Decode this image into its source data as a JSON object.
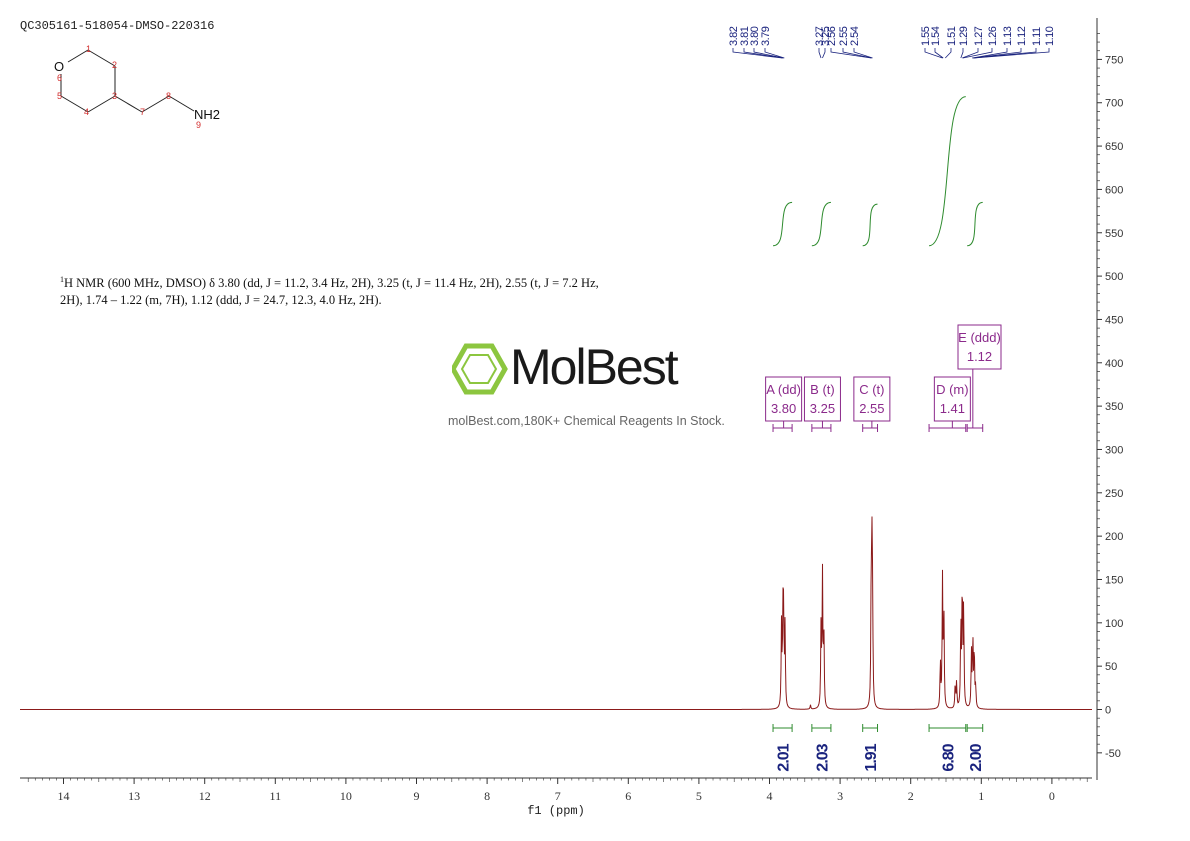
{
  "sample_id": "QC305161-518054-DMSO-220316",
  "nmr_description": {
    "nucleus_sup": "1",
    "text": "H NMR (600 MHz, DMSO) δ 3.80 (dd, J = 11.2, 3.4 Hz, 2H), 3.25 (t, J = 11.4 Hz, 2H), 2.55 (t, J = 7.2 Hz, 2H), 1.74 – 1.22 (m, 7H), 1.12 (ddd, J = 24.7, 12.3, 4.0 Hz, 2H)."
  },
  "logo": {
    "text": "MolBest",
    "tagline": "molBest.com,180K+ Chemical Reagents In Stock."
  },
  "molecule": {
    "atoms": [
      "O",
      "NH2"
    ],
    "numbers": [
      "1",
      "2",
      "3",
      "4",
      "5",
      "6",
      "7",
      "8",
      "9"
    ]
  },
  "colors": {
    "spectrum": "#8b1a1a",
    "integral": "#2e8b2e",
    "peak_label": "#1a237e",
    "multiplet": "#8b2a8b",
    "axis": "#333333",
    "atom_number": "#d32f2f"
  },
  "chart_data": {
    "type": "line",
    "xlabel": "f1 (ppm)",
    "xlim": [
      14.6,
      -0.5
    ],
    "x_ticks": [
      "14",
      "13",
      "12",
      "11",
      "10",
      "9",
      "8",
      "7",
      "6",
      "5",
      "4",
      "3",
      "2",
      "1",
      "0"
    ],
    "ylim": [
      -80,
      780
    ],
    "y_ticks": [
      "-50",
      "0",
      "50",
      "100",
      "150",
      "200",
      "250",
      "300",
      "350",
      "400",
      "450",
      "500",
      "550",
      "600",
      "650",
      "700",
      "750"
    ],
    "peaks": [
      {
        "x": 3.83,
        "y": 95
      },
      {
        "x": 3.81,
        "y": 102
      },
      {
        "x": 3.8,
        "y": 100
      },
      {
        "x": 3.78,
        "y": 93
      },
      {
        "x": 3.42,
        "y": 5
      },
      {
        "x": 3.27,
        "y": 93
      },
      {
        "x": 3.25,
        "y": 155
      },
      {
        "x": 3.23,
        "y": 88
      },
      {
        "x": 2.56,
        "y": 118
      },
      {
        "x": 2.55,
        "y": 175
      },
      {
        "x": 2.54,
        "y": 110
      },
      {
        "x": 1.58,
        "y": 55
      },
      {
        "x": 1.55,
        "y": 150
      },
      {
        "x": 1.53,
        "y": 110
      },
      {
        "x": 1.37,
        "y": 28
      },
      {
        "x": 1.35,
        "y": 30
      },
      {
        "x": 1.29,
        "y": 100
      },
      {
        "x": 1.27,
        "y": 145
      },
      {
        "x": 1.25,
        "y": 120
      },
      {
        "x": 1.14,
        "y": 65
      },
      {
        "x": 1.12,
        "y": 82
      },
      {
        "x": 1.1,
        "y": 70
      },
      {
        "x": 1.08,
        "y": 25
      }
    ],
    "peak_labels": [
      {
        "text": "3.82",
        "x": 3.82
      },
      {
        "text": "3.81",
        "x": 3.81
      },
      {
        "text": "3.80",
        "x": 3.8
      },
      {
        "text": "3.79",
        "x": 3.79
      },
      {
        "text": "3.27",
        "x": 3.27
      },
      {
        "text": "3.25",
        "x": 3.25
      },
      {
        "text": "2.56",
        "x": 2.56
      },
      {
        "text": "2.55",
        "x": 2.55
      },
      {
        "text": "2.54",
        "x": 2.54
      },
      {
        "text": "1.55",
        "x": 1.55
      },
      {
        "text": "1.54",
        "x": 1.54
      },
      {
        "text": "1.51",
        "x": 1.51
      },
      {
        "text": "1.29",
        "x": 1.29
      },
      {
        "text": "1.27",
        "x": 1.27
      },
      {
        "text": "1.26",
        "x": 1.26
      },
      {
        "text": "1.13",
        "x": 1.13
      },
      {
        "text": "1.12",
        "x": 1.12
      },
      {
        "text": "1.11",
        "x": 1.11
      },
      {
        "text": "1.10",
        "x": 1.1
      }
    ],
    "integrals": [
      {
        "from": 3.95,
        "to": 3.68,
        "value": "2.01"
      },
      {
        "from": 3.4,
        "to": 3.13,
        "value": "2.03"
      },
      {
        "from": 2.68,
        "to": 2.47,
        "value": "1.91"
      },
      {
        "from": 1.74,
        "to": 1.22,
        "value": "6.80"
      },
      {
        "from": 1.2,
        "to": 0.98,
        "value": "2.00"
      }
    ],
    "integral_curves": [
      {
        "from": 3.95,
        "to": 3.68,
        "start": 535,
        "end": 585
      },
      {
        "from": 3.4,
        "to": 3.13,
        "start": 535,
        "end": 585
      },
      {
        "from": 2.68,
        "to": 2.47,
        "start": 535,
        "end": 583
      },
      {
        "from": 1.74,
        "to": 1.22,
        "start": 535,
        "end": 707
      },
      {
        "from": 1.2,
        "to": 0.98,
        "start": 535,
        "end": 585
      }
    ],
    "multiplets": [
      {
        "letter": "A (dd)",
        "shift": "3.80",
        "x": 3.8,
        "from": 3.95,
        "to": 3.68
      },
      {
        "letter": "B (t)",
        "shift": "3.25",
        "x": 3.25,
        "from": 3.4,
        "to": 3.13
      },
      {
        "letter": "C (t)",
        "shift": "2.55",
        "x": 2.55,
        "from": 2.68,
        "to": 2.47
      },
      {
        "letter": "D (m)",
        "shift": "1.41",
        "x": 1.41,
        "from": 1.74,
        "to": 1.22
      },
      {
        "letter": "E (ddd)",
        "shift": "1.12",
        "x": 1.12,
        "from": 1.2,
        "to": 0.98
      }
    ]
  }
}
